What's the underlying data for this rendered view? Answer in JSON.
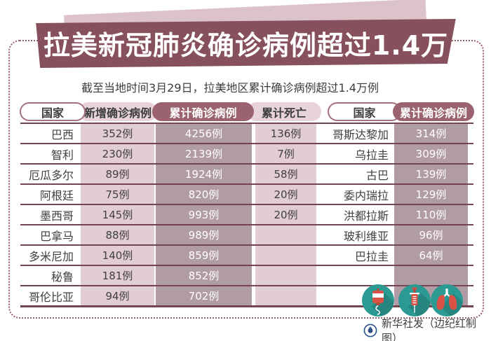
{
  "colors": {
    "banner_maroon": "#87505d",
    "banner_back_pink": "#dcc3cb",
    "dark_pill": "#9a636f",
    "light_pill_pink": "#e9d3da",
    "stripe_pink": "#e3cdd4",
    "stripe_mauve": "#b19ba5",
    "table_line": "#744551",
    "dotted_border": "#9d5f6b",
    "icon_teal": "#2a9a92",
    "icon_red": "#da5245",
    "logo_blue": "#30508c"
  },
  "chart_data": {
    "type": "table",
    "title": "拉美新冠肺炎确诊病例超过1.4万",
    "subtitle": "截至当地时间3月29日，拉美地区累计确诊病例超过1.4万例",
    "tables": [
      {
        "columns": [
          "国家",
          "新增确诊病例",
          "累计确诊病例",
          "累计死亡"
        ],
        "rows": [
          [
            "巴西",
            "352例",
            "4256例",
            "136例"
          ],
          [
            "智利",
            "230例",
            "2139例",
            "7例"
          ],
          [
            "厄瓜多尔",
            "89例",
            "1924例",
            "58例"
          ],
          [
            "阿根廷",
            "75例",
            "820例",
            "20例"
          ],
          [
            "墨西哥",
            "145例",
            "993例",
            "20例"
          ],
          [
            "巴拿马",
            "88例",
            "989例",
            ""
          ],
          [
            "多米尼加",
            "140例",
            "859例",
            ""
          ],
          [
            "秘鲁",
            "181例",
            "852例",
            ""
          ],
          [
            "哥伦比亚",
            "94例",
            "702例",
            ""
          ]
        ]
      },
      {
        "columns": [
          "国家",
          "累计确诊病例"
        ],
        "rows": [
          [
            "哥斯达黎加",
            "314例"
          ],
          [
            "乌拉圭",
            "309例"
          ],
          [
            "古巴",
            "139例"
          ],
          [
            "委内瑞拉",
            "129例"
          ],
          [
            "洪都拉斯",
            "110例"
          ],
          [
            "玻利维亚",
            "96例"
          ],
          [
            "巴拉圭",
            "64例"
          ]
        ]
      }
    ]
  },
  "icons": [
    "iv-drip-icon",
    "syringe-icon",
    "lungs-icon"
  ],
  "footer": {
    "credit": "新华社发（边纪红制图）"
  }
}
